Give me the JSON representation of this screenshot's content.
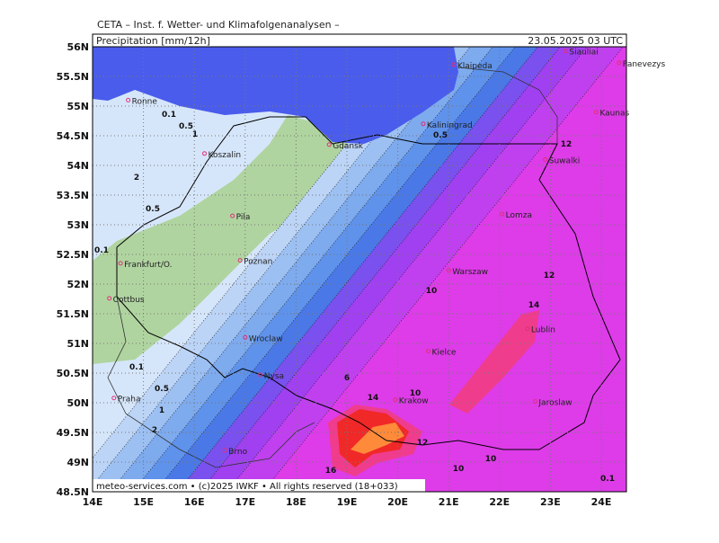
{
  "header": {
    "title": "CETA – Inst. f. Wetter- und Klimafolgenanalysen –",
    "parameter": "Precipitation [mm/12h]",
    "valid_time": "23.05.2025 03 UTC"
  },
  "footer": "meteo-services.com • (c)2025 IWKF • All rights reserved (18+033)",
  "map": {
    "lon_ticks": [
      {
        "value": 14,
        "label": "14E"
      },
      {
        "value": 15,
        "label": "15E"
      },
      {
        "value": 16,
        "label": "16E"
      },
      {
        "value": 17,
        "label": "17E"
      },
      {
        "value": 18,
        "label": "18E"
      },
      {
        "value": 19,
        "label": "19E"
      },
      {
        "value": 20,
        "label": "20E"
      },
      {
        "value": 21,
        "label": "21E"
      },
      {
        "value": 22,
        "label": "22E"
      },
      {
        "value": 23,
        "label": "23E"
      },
      {
        "value": 24,
        "label": "24E"
      }
    ],
    "lat_ticks": [
      {
        "value": 56,
        "label": "56N"
      },
      {
        "value": 55.5,
        "label": "55.5N"
      },
      {
        "value": 55,
        "label": "55N"
      },
      {
        "value": 54.5,
        "label": "54.5N"
      },
      {
        "value": 54,
        "label": "54N"
      },
      {
        "value": 53.5,
        "label": "53.5N"
      },
      {
        "value": 53,
        "label": "53N"
      },
      {
        "value": 52.5,
        "label": "52.5N"
      },
      {
        "value": 52,
        "label": "52N"
      },
      {
        "value": 51.5,
        "label": "51.5N"
      },
      {
        "value": 51,
        "label": "51N"
      },
      {
        "value": 50.5,
        "label": "50.5N"
      },
      {
        "value": 50,
        "label": "50N"
      },
      {
        "value": 49.5,
        "label": "49.5N"
      },
      {
        "value": 49,
        "label": "49N"
      },
      {
        "value": 48.5,
        "label": "48.5N"
      }
    ],
    "cities": [
      "Ronne",
      "Koszalin",
      "Gdansk",
      "Kaliningrad",
      "Klaipeda",
      "Siauliai",
      "Panevezys",
      "Kaunas",
      "Suwalki",
      "Lomza",
      "Pila",
      "Frankfurt/O.",
      "Cottbus",
      "Poznan",
      "Warszaw",
      "Wroclaw",
      "Lublin",
      "Kielce",
      "Nysa",
      "Krakow",
      "Praha",
      "Jaroslaw",
      "Brno"
    ],
    "contour_labels": [
      0.1,
      0.1,
      0.1,
      0.1,
      0.5,
      0.5,
      0.5,
      0.5,
      1,
      1,
      2,
      2,
      6,
      10,
      10,
      10,
      10,
      12,
      12,
      12,
      14,
      14,
      16
    ]
  }
}
